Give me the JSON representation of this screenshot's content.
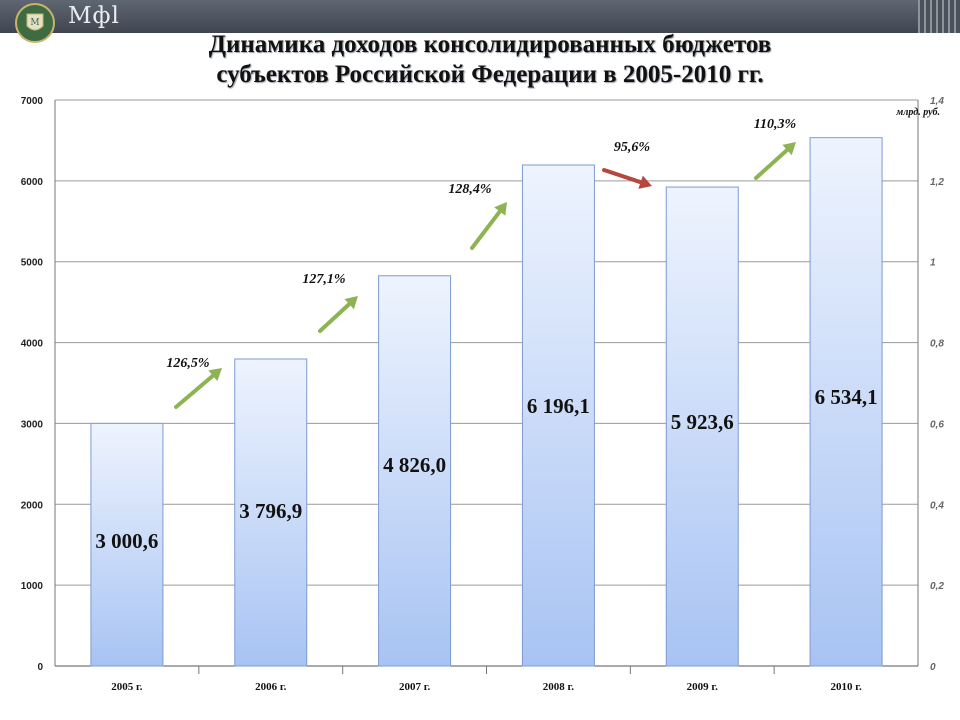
{
  "header": {
    "brand": "Мфl",
    "title_line1": "Динамика доходов консолидированных бюджетов",
    "title_line2": "субъектов Российской Федерации в 2005-2010 гг."
  },
  "chart_data": {
    "type": "bar",
    "title": "Динамика доходов консолидированных бюджетов субъектов Российской Федерации в 2005-2010 гг.",
    "unit": "млрд. руб.",
    "categories": [
      "2005 г.",
      "2006 г.",
      "2007 г.",
      "2008 г.",
      "2009 г.",
      "2010 г."
    ],
    "values": [
      3000.6,
      3796.9,
      4826.0,
      6196.1,
      5923.6,
      6534.1
    ],
    "value_labels": [
      "3 000,6",
      "3 796,9",
      "4 826,0",
      "6 196,1",
      "5 923,6",
      "6 534,1"
    ],
    "growth": [
      {
        "label": "126,5%",
        "direction": "up",
        "color": "#8db353"
      },
      {
        "label": "127,1%",
        "direction": "up",
        "color": "#8db353"
      },
      {
        "label": "128,4%",
        "direction": "up",
        "color": "#8db353"
      },
      {
        "label": "95,6%",
        "direction": "down",
        "color": "#b5473f"
      },
      {
        "label": "110,3%",
        "direction": "up",
        "color": "#8db353"
      }
    ],
    "ylim": [
      0,
      7000
    ],
    "yticks": [
      0,
      1000,
      2000,
      3000,
      4000,
      5000,
      6000,
      7000
    ],
    "y2lim": [
      0,
      1.4
    ],
    "y2ticks": [
      "0",
      "0,2",
      "0,4",
      "0,6",
      "0,8",
      "1",
      "1,2",
      "1,4"
    ],
    "grid": true,
    "colors": {
      "bar_top": "#eef4fe",
      "bar_bottom": "#a8c3f3",
      "bar_stroke": "#7d9bd0",
      "grid": "#9a9a9a"
    }
  }
}
